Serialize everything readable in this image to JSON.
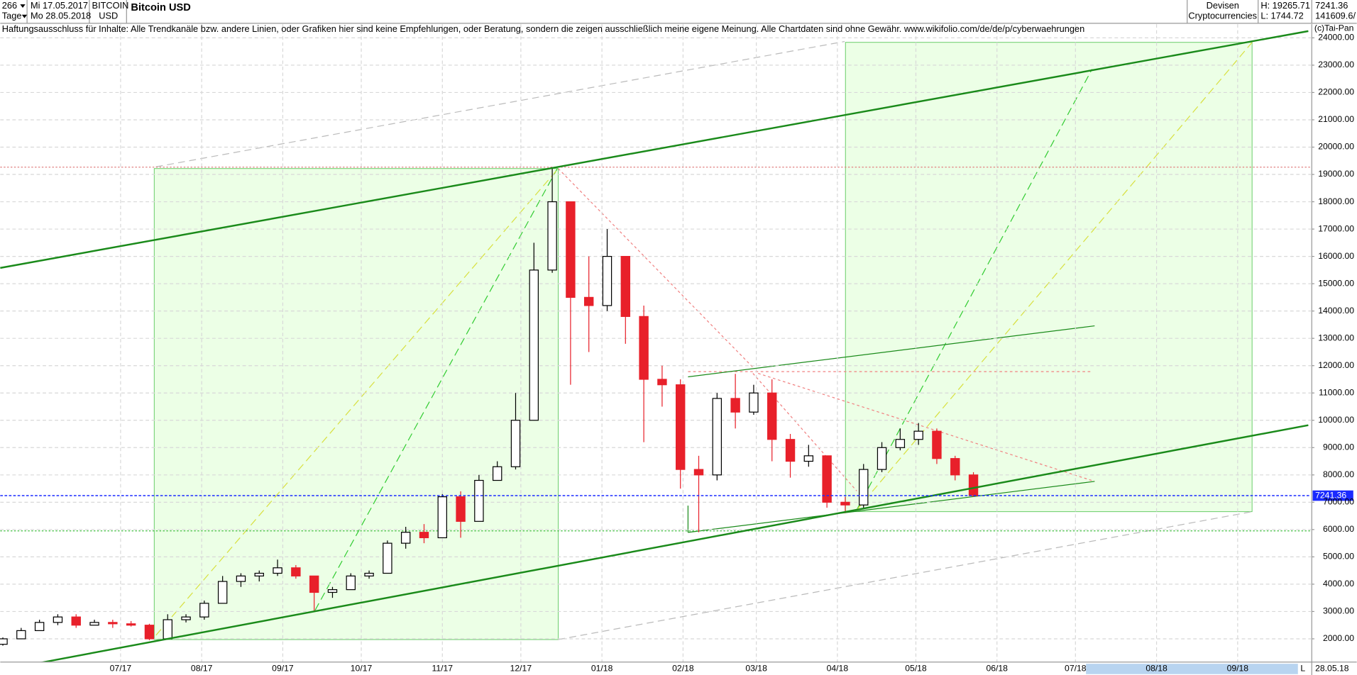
{
  "header": {
    "period": "266",
    "interval": "Tage",
    "from": "Mi 17.05.2017",
    "to": "Mo 28.05.2018",
    "symbol": "BITCOIN",
    "currency": "USD",
    "market": "Devisen",
    "group": "Cryptocurrencies",
    "high": "H: 19265.71",
    "low": "L: 1744.72",
    "last": "7241.36",
    "volume": "141609.6/",
    "copyright": "(c)Tai-Pan",
    "end_date": "28.05.18",
    "scale_mode": "L"
  },
  "disclaimer": "Haftungsausschluss für Inhalte: Alle Trendkanäle bzw. andere Linien, oder Grafiken hier sind keine Empfehlungen, oder Beratung, sondern die zeigen ausschließlich meine eigene Meinung. Alle Chartdaten sind ohne Gewähr.  www.wikifolio.com/de/de/p/cyberwaehrungen",
  "chart_data": {
    "type": "candlestick",
    "title": "Bitcoin USD",
    "x": [
      "2017-05-17",
      "2017-05-24",
      "2017-05-31",
      "2017-06-07",
      "2017-06-14",
      "2017-06-21",
      "2017-06-28",
      "2017-07-05",
      "2017-07-12",
      "2017-07-19",
      "2017-07-26",
      "2017-08-02",
      "2017-08-09",
      "2017-08-16",
      "2017-08-23",
      "2017-08-30",
      "2017-09-06",
      "2017-09-13",
      "2017-09-20",
      "2017-09-27",
      "2017-10-04",
      "2017-10-11",
      "2017-10-18",
      "2017-10-25",
      "2017-11-01",
      "2017-11-08",
      "2017-11-15",
      "2017-11-22",
      "2017-11-29",
      "2017-12-06",
      "2017-12-13",
      "2017-12-20",
      "2017-12-27",
      "2018-01-03",
      "2018-01-10",
      "2018-01-17",
      "2018-01-24",
      "2018-01-31",
      "2018-02-07",
      "2018-02-14",
      "2018-02-21",
      "2018-02-28",
      "2018-03-07",
      "2018-03-14",
      "2018-03-21",
      "2018-03-28",
      "2018-04-04",
      "2018-04-11",
      "2018-04-18",
      "2018-04-25",
      "2018-05-02",
      "2018-05-09",
      "2018-05-16",
      "2018-05-23"
    ],
    "open": [
      1800,
      2000,
      2300,
      2600,
      2800,
      2500,
      2600,
      2550,
      2500,
      2000,
      2700,
      2800,
      3300,
      4100,
      4300,
      4400,
      4600,
      4300,
      3700,
      3800,
      4300,
      4400,
      5500,
      5900,
      5700,
      7200,
      6300,
      7800,
      8300,
      10000,
      15500,
      18000,
      14500,
      14200,
      16000,
      13800,
      11500,
      11300,
      8200,
      8000,
      10800,
      10300,
      11000,
      9300,
      8500,
      8700,
      7000,
      6900,
      8200,
      9000,
      9300,
      9600,
      8600,
      8000
    ],
    "high": [
      2050,
      2400,
      2700,
      2900,
      2900,
      2700,
      2700,
      2650,
      2550,
      2900,
      2900,
      3400,
      4300,
      4400,
      4500,
      4900,
      4700,
      4300,
      3900,
      4400,
      4500,
      5600,
      6100,
      6200,
      7300,
      7400,
      8000,
      8500,
      11000,
      16500,
      19265.71,
      18000,
      16000,
      17000,
      16000,
      14200,
      12000,
      11500,
      8700,
      11000,
      11700,
      11300,
      11500,
      9500,
      9100,
      8700,
      7200,
      8400,
      9200,
      9700,
      9900,
      9700,
      8700,
      8100
    ],
    "low": [
      1750,
      2000,
      2300,
      2500,
      2400,
      2500,
      2400,
      2450,
      1950,
      2000,
      2600,
      2700,
      3300,
      3900,
      4100,
      4300,
      4200,
      3000,
      3500,
      3800,
      4200,
      4400,
      5300,
      5500,
      5700,
      5700,
      6300,
      7800,
      8200,
      10000,
      15400,
      11300,
      12500,
      14000,
      12800,
      9200,
      10500,
      7500,
      5900,
      7800,
      9700,
      10200,
      8500,
      7900,
      8300,
      6800,
      6600,
      6800,
      8100,
      8900,
      9100,
      8400,
      7800,
      7200
    ],
    "close": [
      2000,
      2300,
      2600,
      2800,
      2500,
      2600,
      2550,
      2500,
      2000,
      2700,
      2800,
      3300,
      4100,
      4300,
      4400,
      4600,
      4300,
      3700,
      3800,
      4300,
      4400,
      5500,
      5900,
      5700,
      7200,
      6300,
      7800,
      8300,
      10000,
      15500,
      18000,
      14500,
      14200,
      16000,
      13800,
      11500,
      11300,
      8200,
      8000,
      10800,
      10300,
      11000,
      9300,
      8500,
      8700,
      7000,
      6900,
      8200,
      9000,
      9300,
      9600,
      8600,
      8000,
      7241.36
    ],
    "up_color": "#000000",
    "down_color": "#e8202a",
    "current_price": 7241.36,
    "current_price_color": "#1a2aff",
    "reference_lines": [
      {
        "value": 19265.71,
        "color": "#e08080"
      },
      {
        "value": 5950,
        "color": "#40c040"
      }
    ],
    "xlim": [
      "2017-05-16",
      "2018-09-29"
    ],
    "xticks": [
      {
        "value": "2017-07-01",
        "label": "07/17"
      },
      {
        "value": "2017-08-01",
        "label": "08/17"
      },
      {
        "value": "2017-09-01",
        "label": "09/17"
      },
      {
        "value": "2017-10-01",
        "label": "10/17"
      },
      {
        "value": "2017-11-01",
        "label": "11/17"
      },
      {
        "value": "2017-12-01",
        "label": "12/17"
      },
      {
        "value": "2018-01-01",
        "label": "01/18"
      },
      {
        "value": "2018-02-01",
        "label": "02/18"
      },
      {
        "value": "2018-03-01",
        "label": "03/18"
      },
      {
        "value": "2018-04-01",
        "label": "04/18"
      },
      {
        "value": "2018-05-01",
        "label": "05/18"
      },
      {
        "value": "2018-06-01",
        "label": "06/18"
      },
      {
        "value": "2018-07-01",
        "label": "07/18"
      },
      {
        "value": "2018-08-01",
        "label": "08/18"
      },
      {
        "value": "2018-09-01",
        "label": "09/18"
      }
    ],
    "ylim": [
      1150,
      24500
    ],
    "yticks": [
      {
        "value": 2000,
        "label": "2000.00"
      },
      {
        "value": 3000,
        "label": "3000.00"
      },
      {
        "value": 4000,
        "label": "4000.00"
      },
      {
        "value": 5000,
        "label": "5000.00"
      },
      {
        "value": 6000,
        "label": "6000.00"
      },
      {
        "value": 7000,
        "label": "7000.00"
      },
      {
        "value": 8000,
        "label": "8000.00"
      },
      {
        "value": 9000,
        "label": "9000.00"
      },
      {
        "value": 10000,
        "label": "10000.00"
      },
      {
        "value": 11000,
        "label": "11000.00"
      },
      {
        "value": 12000,
        "label": "12000.00"
      },
      {
        "value": 13000,
        "label": "13000.00"
      },
      {
        "value": 14000,
        "label": "14000.00"
      },
      {
        "value": 15000,
        "label": "15000.00"
      },
      {
        "value": 16000,
        "label": "16000.00"
      },
      {
        "value": 17000,
        "label": "17000.00"
      },
      {
        "value": 18000,
        "label": "18000.00"
      },
      {
        "value": 19000,
        "label": "19000.00"
      },
      {
        "value": 20000,
        "label": "20000.00"
      },
      {
        "value": 21000,
        "label": "21000.00"
      },
      {
        "value": 22000,
        "label": "22000.00"
      },
      {
        "value": 23000,
        "label": "23000.00"
      },
      {
        "value": 24000,
        "label": "24000.00"
      }
    ],
    "grid": true
  }
}
